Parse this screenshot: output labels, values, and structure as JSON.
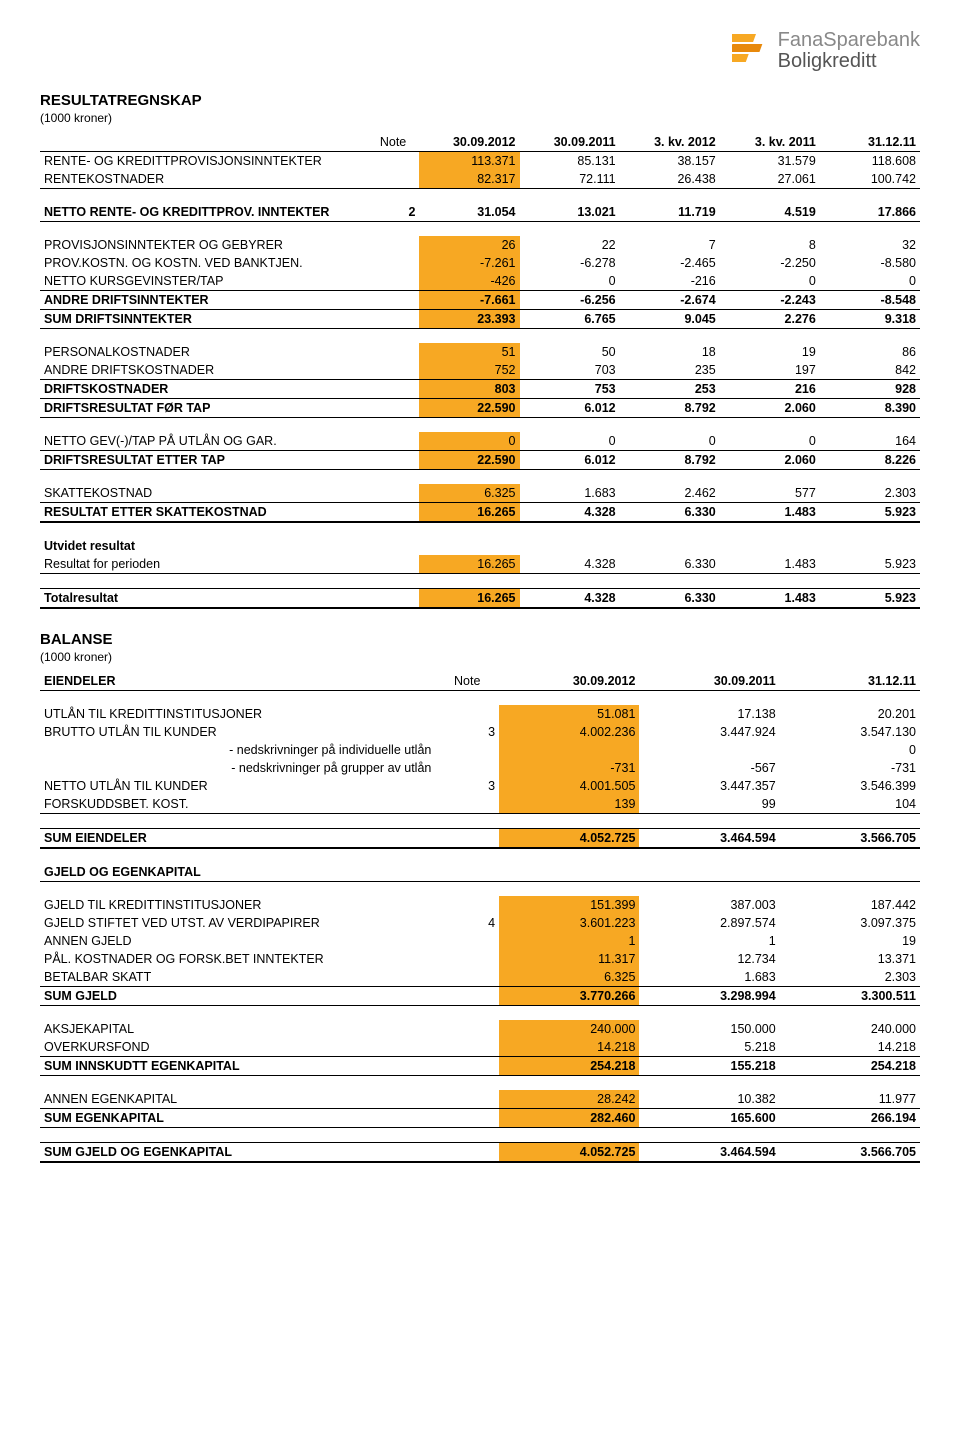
{
  "brand": {
    "name1": "FanaSparebank",
    "name2": "Boligkreditt"
  },
  "colors": {
    "highlight": "#f7a823"
  },
  "income": {
    "title": "RESULTATREGNSKAP",
    "subtitle": "(1000 kroner)",
    "columns": {
      "note": "Note",
      "c1": "30.09.2012",
      "c2": "30.09.2011",
      "c3": "3. kv. 2012",
      "c4": "3. kv. 2011",
      "c5": "31.12.11"
    },
    "rows": [
      {
        "label": "RENTE- OG KREDITTPROVISJONSINNTEKTER",
        "v": [
          "113.371",
          "85.131",
          "38.157",
          "31.579",
          "118.608"
        ],
        "hl": true
      },
      {
        "label": "RENTEKOSTNADER",
        "v": [
          "82.317",
          "72.111",
          "26.438",
          "27.061",
          "100.742"
        ],
        "hl": true,
        "class": "bb"
      },
      {
        "label": "NETTO RENTE- OG KREDITTPROV. INNTEKTER",
        "note": "2",
        "v": [
          "31.054",
          "13.021",
          "11.719",
          "4.519",
          "17.866"
        ],
        "class": "bold bb",
        "spacer_before": true
      },
      {
        "label": "PROVISJONSINNTEKTER OG GEBYRER",
        "v": [
          "26",
          "22",
          "7",
          "8",
          "32"
        ],
        "hl": true,
        "spacer_before": true
      },
      {
        "label": "PROV.KOSTN. OG KOSTN. VED BANKTJEN.",
        "v": [
          "-7.261",
          "-6.278",
          "-2.465",
          "-2.250",
          "-8.580"
        ],
        "hl": true
      },
      {
        "label": "NETTO KURSGEVINSTER/TAP",
        "v": [
          "-426",
          "0",
          "-216",
          "0",
          "0"
        ],
        "hl": true,
        "class": "bb"
      },
      {
        "label": "ANDRE DRIFTSINNTEKTER",
        "v": [
          "-7.661",
          "-6.256",
          "-2.674",
          "-2.243",
          "-8.548"
        ],
        "hl": true,
        "class": "bold bb"
      },
      {
        "label": "SUM DRIFTSINNTEKTER",
        "v": [
          "23.393",
          "6.765",
          "9.045",
          "2.276",
          "9.318"
        ],
        "hl": true,
        "class": "bold bb"
      },
      {
        "label": "PERSONALKOSTNADER",
        "v": [
          "51",
          "50",
          "18",
          "19",
          "86"
        ],
        "hl": true,
        "spacer_before": true
      },
      {
        "label": "ANDRE DRIFTSKOSTNADER",
        "v": [
          "752",
          "703",
          "235",
          "197",
          "842"
        ],
        "hl": true,
        "class": "bb"
      },
      {
        "label": "DRIFTSKOSTNADER",
        "v": [
          "803",
          "753",
          "253",
          "216",
          "928"
        ],
        "hl": true,
        "class": "bold bb"
      },
      {
        "label": "DRIFTSRESULTAT FØR TAP",
        "v": [
          "22.590",
          "6.012",
          "8.792",
          "2.060",
          "8.390"
        ],
        "hl": true,
        "class": "bold bb"
      },
      {
        "label": "NETTO GEV(-)/TAP PÅ UTLÅN OG GAR.",
        "v": [
          "0",
          "0",
          "0",
          "0",
          "164"
        ],
        "hl": true,
        "class": "bb",
        "spacer_before": true
      },
      {
        "label": "DRIFTSRESULTAT ETTER TAP",
        "v": [
          "22.590",
          "6.012",
          "8.792",
          "2.060",
          "8.226"
        ],
        "hl": true,
        "class": "bold bb"
      },
      {
        "label": "SKATTEKOSTNAD",
        "v": [
          "6.325",
          "1.683",
          "2.462",
          "577",
          "2.303"
        ],
        "hl": true,
        "class": "bb",
        "spacer_before": true
      },
      {
        "label": "RESULTAT ETTER SKATTEKOSTNAD",
        "v": [
          "16.265",
          "4.328",
          "6.330",
          "1.483",
          "5.923"
        ],
        "hl": true,
        "class": "bold bb-thick"
      },
      {
        "label": "Utvidet resultat",
        "v": [
          "",
          "",
          "",
          "",
          ""
        ],
        "class": "bold",
        "spacer_before": true
      },
      {
        "label": "Resultat for perioden",
        "v": [
          "16.265",
          "4.328",
          "6.330",
          "1.483",
          "5.923"
        ],
        "hl": true,
        "class": "bb"
      },
      {
        "label": "Totalresultat",
        "v": [
          "16.265",
          "4.328",
          "6.330",
          "1.483",
          "5.923"
        ],
        "hl": true,
        "class": "bold bt bb-thick",
        "spacer_before": true
      }
    ]
  },
  "balance": {
    "title": "BALANSE",
    "subtitle": "(1000 kroner)",
    "columns": {
      "note": "Note",
      "c1": "30.09.2012",
      "c2": "30.09.2011",
      "c3": "31.12.11"
    },
    "section1": "EIENDELER",
    "section2": "GJELD OG EGENKAPITAL",
    "rows_assets": [
      {
        "label": "UTLÅN TIL KREDITTINSTITUSJONER",
        "v": [
          "51.081",
          "17.138",
          "20.201"
        ],
        "hl": true
      },
      {
        "label": "BRUTTO UTLÅN TIL KUNDER",
        "note": "3",
        "v": [
          "4.002.236",
          "3.447.924",
          "3.547.130"
        ],
        "hl": true
      },
      {
        "label": " - nedskrivninger på individuelle utlån",
        "indent": true,
        "v": [
          "",
          "",
          "0"
        ],
        "hl": true
      },
      {
        "label": " - nedskrivninger på grupper av utlån",
        "indent": true,
        "v": [
          "-731",
          "-567",
          "-731"
        ],
        "hl": true
      },
      {
        "label": "NETTO UTLÅN TIL KUNDER",
        "note": "3",
        "v": [
          "4.001.505",
          "3.447.357",
          "3.546.399"
        ],
        "hl": true
      },
      {
        "label": "FORSKUDDSBET. KOST.",
        "v": [
          "139",
          "99",
          "104"
        ],
        "hl": true,
        "class": "bb"
      },
      {
        "label": "SUM EIENDELER",
        "v": [
          "4.052.725",
          "3.464.594",
          "3.566.705"
        ],
        "hl": true,
        "class": "bold bt bb-thick",
        "spacer_before": true
      }
    ],
    "rows_liab": [
      {
        "label": "GJELD TIL KREDITTINSTITUSJONER",
        "v": [
          "151.399",
          "387.003",
          "187.442"
        ],
        "hl": true,
        "spacer_before": true
      },
      {
        "label": "GJELD STIFTET VED UTST. AV VERDIPAPIRER",
        "note": "4",
        "v": [
          "3.601.223",
          "2.897.574",
          "3.097.375"
        ],
        "hl": true
      },
      {
        "label": "ANNEN GJELD",
        "v": [
          "1",
          "1",
          "19"
        ],
        "hl": true
      },
      {
        "label": "PÅL. KOSTNADER OG FORSK.BET INNTEKTER",
        "v": [
          "11.317",
          "12.734",
          "13.371"
        ],
        "hl": true
      },
      {
        "label": "BETALBAR SKATT",
        "v": [
          "6.325",
          "1.683",
          "2.303"
        ],
        "hl": true,
        "class": "bb"
      },
      {
        "label": "SUM GJELD",
        "v": [
          "3.770.266",
          "3.298.994",
          "3.300.511"
        ],
        "hl": true,
        "class": "bold bb"
      },
      {
        "label": "AKSJEKAPITAL",
        "v": [
          "240.000",
          "150.000",
          "240.000"
        ],
        "hl": true,
        "spacer_before": true
      },
      {
        "label": "OVERKURSFOND",
        "v": [
          "14.218",
          "5.218",
          "14.218"
        ],
        "hl": true,
        "class": "bb"
      },
      {
        "label": "SUM INNSKUDTT EGENKAPITAL",
        "v": [
          "254.218",
          "155.218",
          "254.218"
        ],
        "hl": true,
        "class": "bold bb"
      },
      {
        "label": "ANNEN EGENKAPITAL",
        "v": [
          "28.242",
          "10.382",
          "11.977"
        ],
        "hl": true,
        "class": "bb",
        "spacer_before": true
      },
      {
        "label": "SUM EGENKAPITAL",
        "v": [
          "282.460",
          "165.600",
          "266.194"
        ],
        "hl": true,
        "class": "bold bb"
      },
      {
        "label": "SUM GJELD OG EGENKAPITAL",
        "v": [
          "4.052.725",
          "3.464.594",
          "3.566.705"
        ],
        "hl": true,
        "class": "bold bt bb-thick",
        "spacer_before": true
      }
    ]
  }
}
